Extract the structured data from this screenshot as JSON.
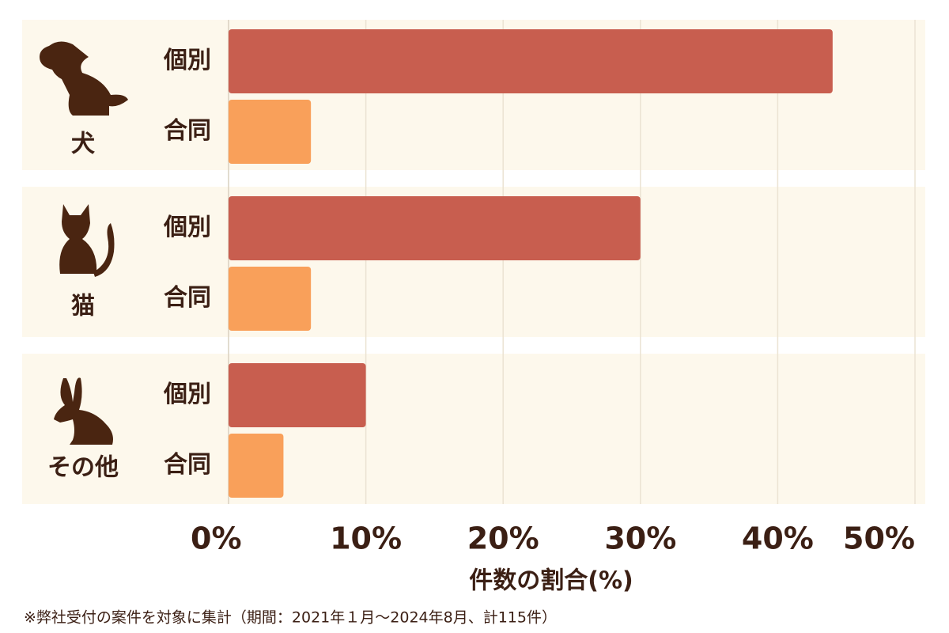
{
  "chart_data": {
    "type": "hbar_grouped",
    "categories": [
      "犬",
      "猫",
      "その他"
    ],
    "series": [
      {
        "name": "個別",
        "color": "#c85e4f",
        "values": [
          44,
          30,
          10
        ]
      },
      {
        "name": "合同",
        "color": "#f9a05a",
        "values": [
          6,
          6,
          4
        ]
      }
    ],
    "xlim": [
      0,
      50
    ],
    "xticks": [
      {
        "value": 0,
        "label": "0%"
      },
      {
        "value": 10,
        "label": "10%"
      },
      {
        "value": 20,
        "label": "20%"
      },
      {
        "value": 30,
        "label": "30%"
      },
      {
        "value": 40,
        "label": "40%"
      },
      {
        "value": 50,
        "label": "50%"
      }
    ],
    "xlabel": "件数の割合(%)",
    "grid": true,
    "note": "※弊社受付の案件を対象に集計（期間：2021年１月～2024年8月、計115件）"
  }
}
